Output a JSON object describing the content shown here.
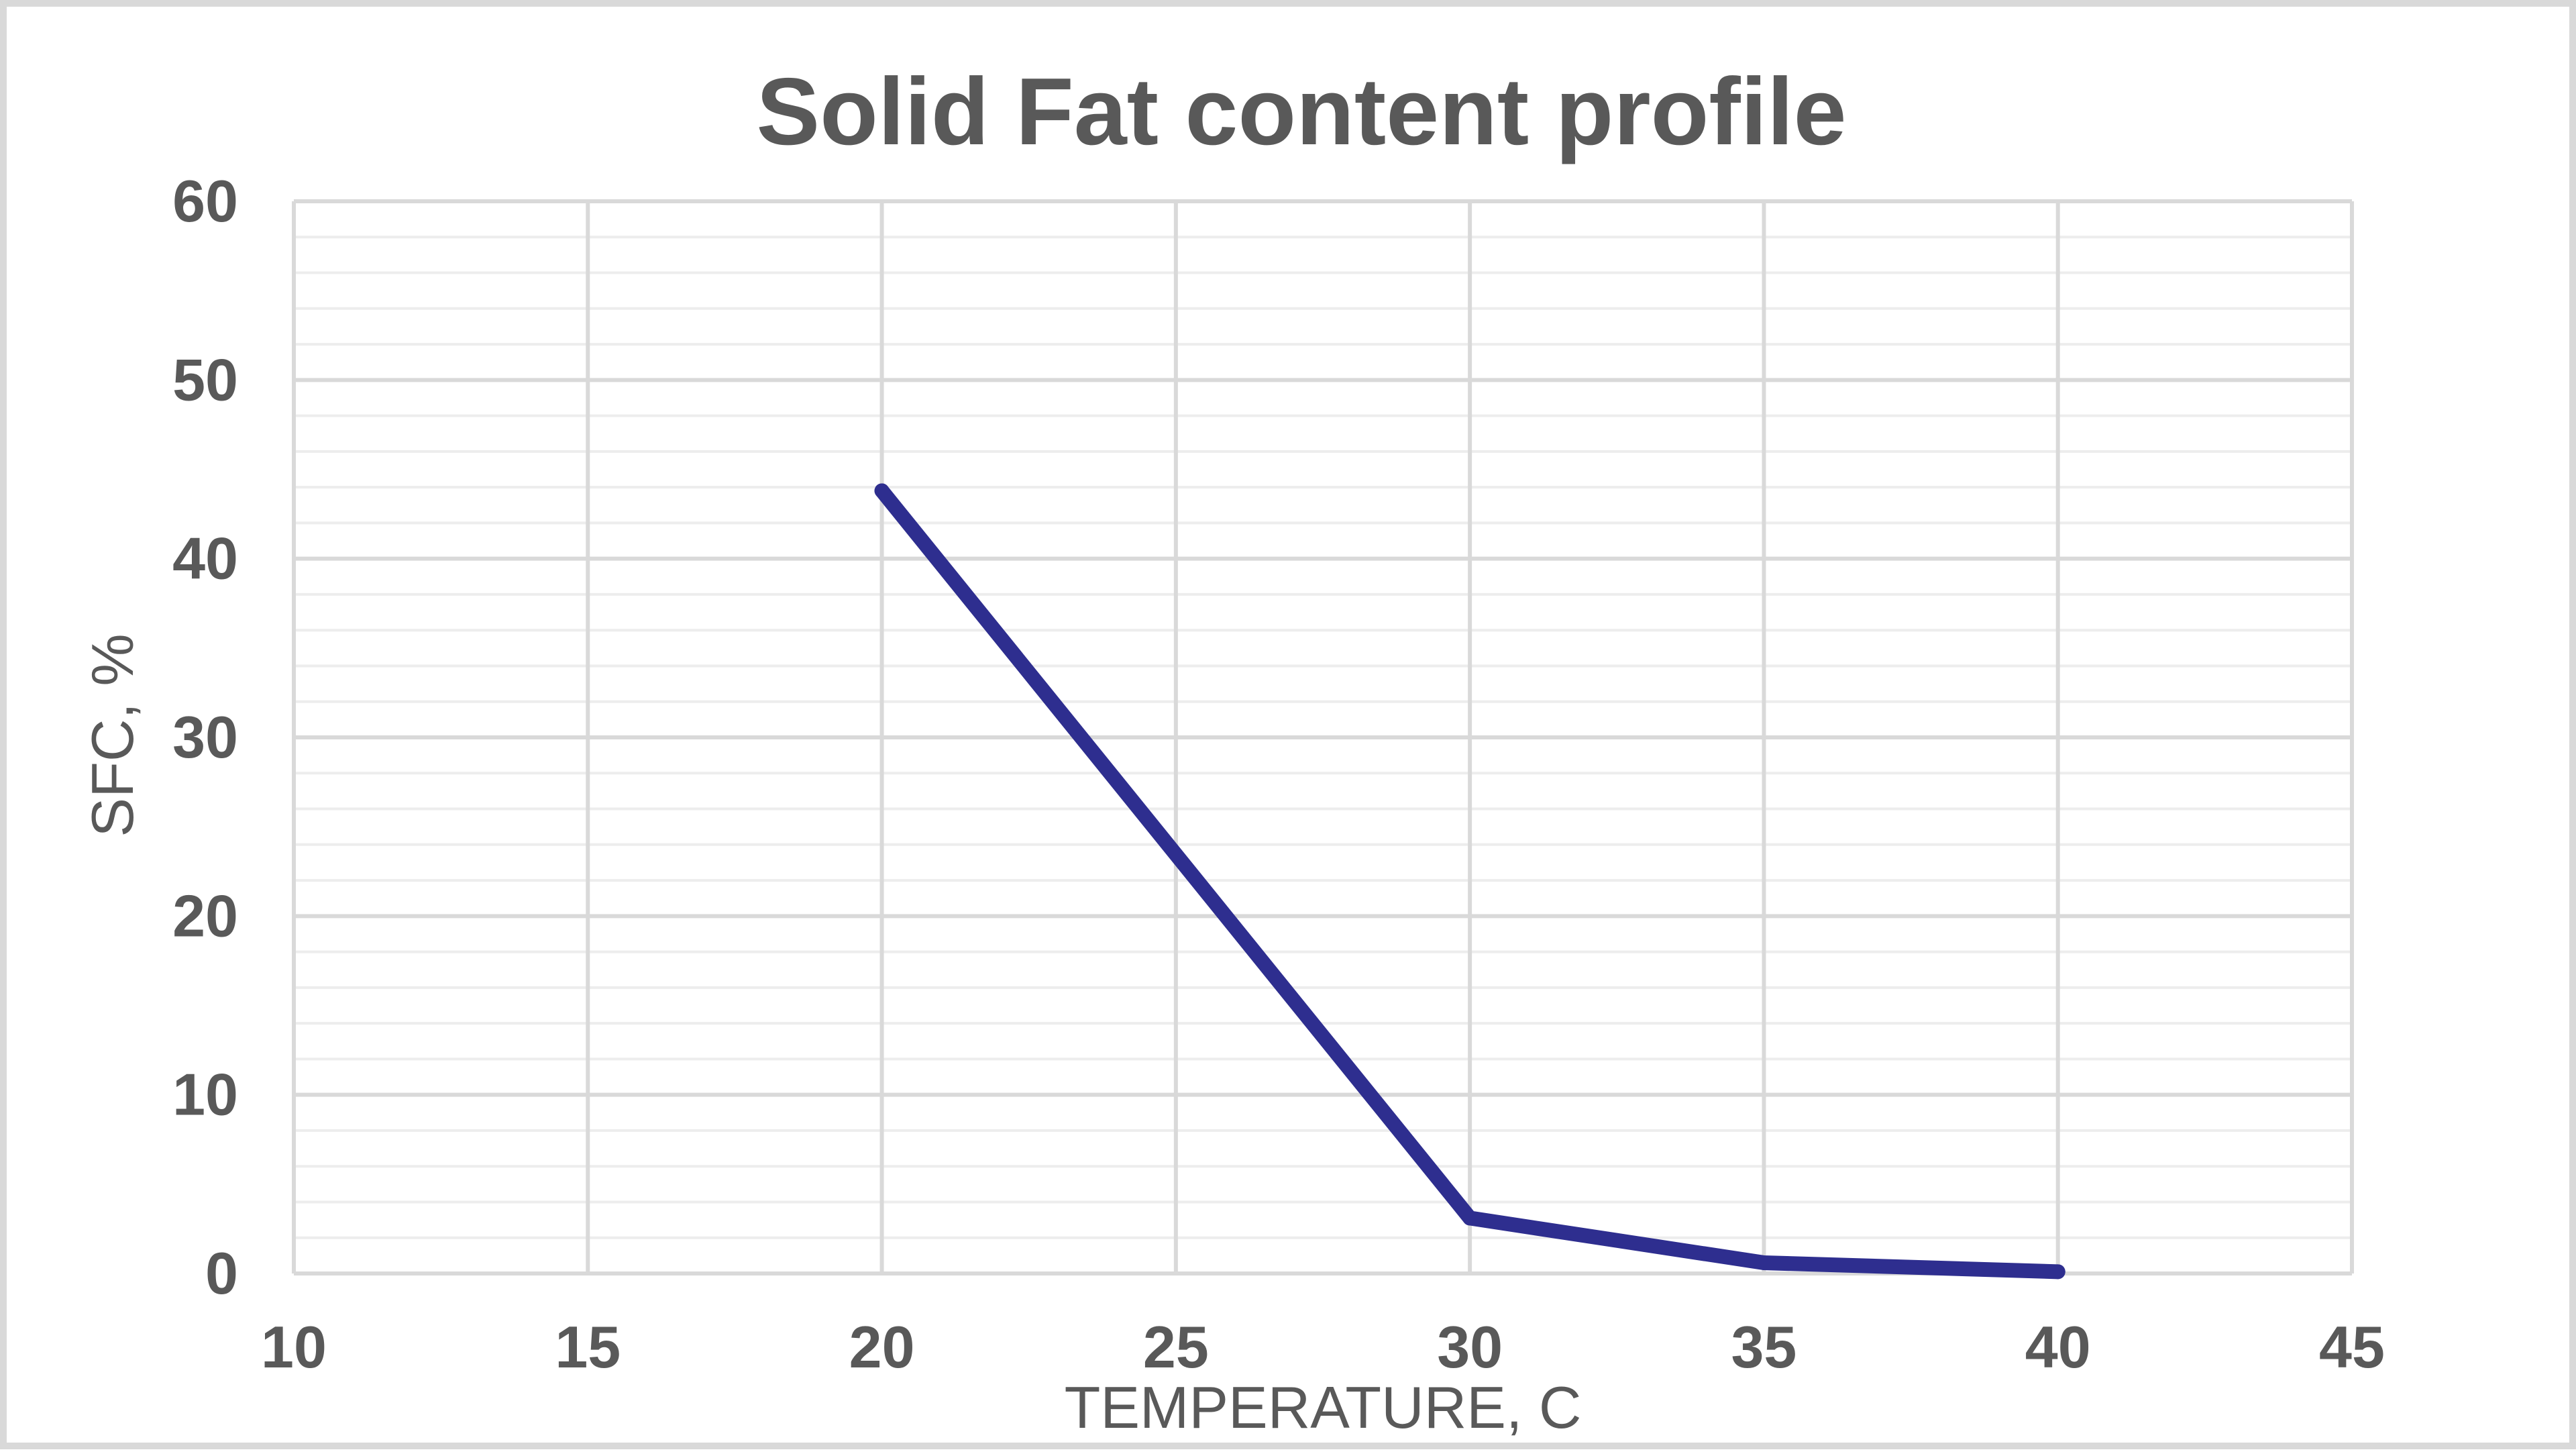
{
  "chart_data": {
    "type": "scatter",
    "mode": "lines",
    "title": "Solid Fat content profile",
    "xlabel": "TEMPERATURE, C",
    "ylabel": "SFC, %",
    "xlim": [
      10,
      45
    ],
    "ylim": [
      0,
      60
    ],
    "x_ticks": [
      10,
      15,
      20,
      25,
      30,
      35,
      40,
      45
    ],
    "y_ticks": [
      0,
      10,
      20,
      30,
      40,
      50,
      60
    ],
    "x_tick_labels": [
      "10",
      "15",
      "20",
      "25",
      "30",
      "35",
      "40",
      "45"
    ],
    "y_tick_labels": [
      "0",
      "10",
      "20",
      "30",
      "40",
      "50",
      "60"
    ],
    "grid": true,
    "minor_grid_y": true,
    "legend": "none",
    "series": [
      {
        "color": "#2e2e8f",
        "x": [
          20,
          30,
          35,
          40
        ],
        "y": [
          43.8,
          3.1,
          0.6,
          0.1
        ]
      }
    ],
    "colors": {
      "major_grid": "#d9d9d9",
      "minor_grid": "#ededed",
      "text": "#595959",
      "frame_border": "#d9d9d9"
    }
  }
}
